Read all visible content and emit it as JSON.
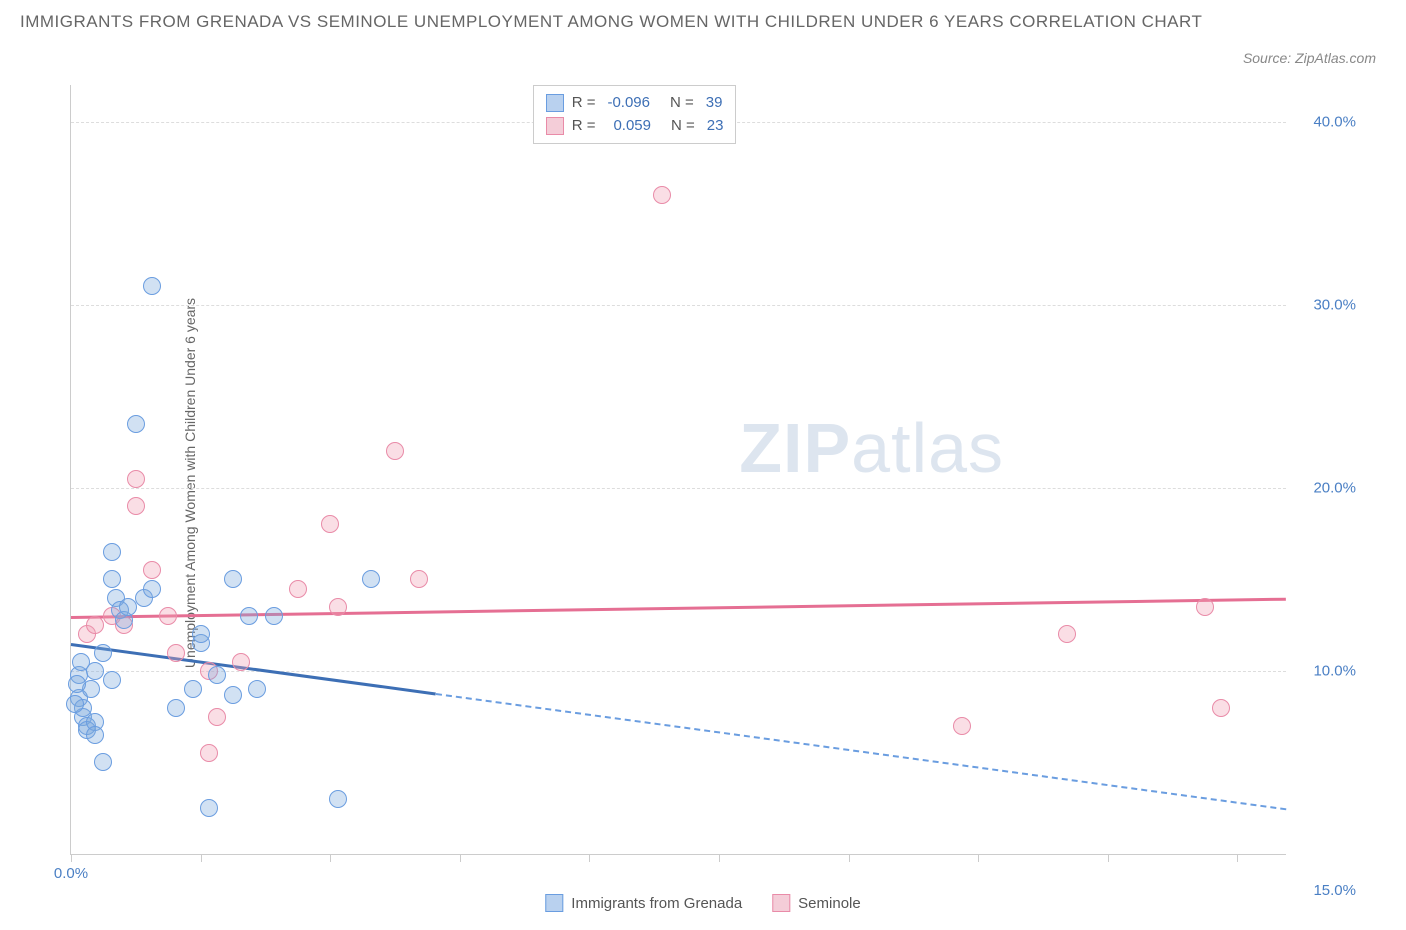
{
  "title": "IMMIGRANTS FROM GRENADA VS SEMINOLE UNEMPLOYMENT AMONG WOMEN WITH CHILDREN UNDER 6 YEARS CORRELATION CHART",
  "source_label": "Source: ZipAtlas.com",
  "y_axis_label": "Unemployment Among Women with Children Under 6 years",
  "watermark": {
    "part1": "ZIP",
    "part2": "atlas"
  },
  "chart": {
    "type": "scatter",
    "xlim": [
      0,
      15
    ],
    "ylim": [
      0,
      42
    ],
    "background_color": "#ffffff",
    "grid_color": "#dddddd",
    "axis_color": "#cccccc",
    "y_ticks": [
      10,
      20,
      30,
      40
    ],
    "y_tick_labels": [
      "10.0%",
      "20.0%",
      "30.0%",
      "40.0%"
    ],
    "y_tick_color": "#4a7fc4",
    "x_tick_positions": [
      0,
      1.6,
      3.2,
      4.8,
      6.4,
      8.0,
      9.6,
      11.2,
      12.8,
      14.4
    ],
    "x_tick_label_left": "0.0%",
    "x_tick_label_right": "15.0%",
    "label_fontsize": 14,
    "tick_fontsize": 15
  },
  "stats_legend": {
    "rows": [
      {
        "swatch_fill": "#b9d1ef",
        "swatch_stroke": "#6a9de0",
        "r_label": "R =",
        "r_value": "-0.096",
        "n_label": "N =",
        "n_value": "39"
      },
      {
        "swatch_fill": "#f4cdd8",
        "swatch_stroke": "#e98ba8",
        "r_label": "R =",
        "r_value": "0.059",
        "n_label": "N =",
        "n_value": "23"
      }
    ]
  },
  "bottom_legend": {
    "items": [
      {
        "swatch_fill": "#b9d1ef",
        "swatch_stroke": "#6a9de0",
        "label": "Immigrants from Grenada"
      },
      {
        "swatch_fill": "#f4cdd8",
        "swatch_stroke": "#e98ba8",
        "label": "Seminole"
      }
    ]
  },
  "series_blue": {
    "color_fill": "rgba(122,169,222,0.35)",
    "color_stroke": "#6a9de0",
    "marker_size": 18,
    "points": [
      [
        0.1,
        8.5
      ],
      [
        0.15,
        7.5
      ],
      [
        0.2,
        7.0
      ],
      [
        0.25,
        9.0
      ],
      [
        0.3,
        10.0
      ],
      [
        0.1,
        9.8
      ],
      [
        0.15,
        8.0
      ],
      [
        0.2,
        6.8
      ],
      [
        0.3,
        7.2
      ],
      [
        0.05,
        8.2
      ],
      [
        0.08,
        9.3
      ],
      [
        0.12,
        10.5
      ],
      [
        0.4,
        11.0
      ],
      [
        0.5,
        16.5
      ],
      [
        0.5,
        15.0
      ],
      [
        0.55,
        14.0
      ],
      [
        0.6,
        13.3
      ],
      [
        0.65,
        12.8
      ],
      [
        0.7,
        13.5
      ],
      [
        0.8,
        23.5
      ],
      [
        1.0,
        31.0
      ],
      [
        0.4,
        5.0
      ],
      [
        0.5,
        9.5
      ],
      [
        0.9,
        14.0
      ],
      [
        1.0,
        14.5
      ],
      [
        1.3,
        8.0
      ],
      [
        1.5,
        9.0
      ],
      [
        1.6,
        11.5
      ],
      [
        1.6,
        12.0
      ],
      [
        1.8,
        9.8
      ],
      [
        2.0,
        8.7
      ],
      [
        2.0,
        15.0
      ],
      [
        2.2,
        13.0
      ],
      [
        2.3,
        9.0
      ],
      [
        2.5,
        13.0
      ],
      [
        1.7,
        2.5
      ],
      [
        3.3,
        3.0
      ],
      [
        3.7,
        15.0
      ],
      [
        0.3,
        6.5
      ]
    ],
    "trend": {
      "y_at_x0": 11.5,
      "y_at_xmax": 2.5,
      "solid_until_x": 4.5
    }
  },
  "series_pink": {
    "color_fill": "rgba(240,160,180,0.35)",
    "color_stroke": "#e98ba8",
    "marker_size": 18,
    "points": [
      [
        0.2,
        12.0
      ],
      [
        0.3,
        12.5
      ],
      [
        0.5,
        13.0
      ],
      [
        0.65,
        12.5
      ],
      [
        0.8,
        19.0
      ],
      [
        0.8,
        20.5
      ],
      [
        1.0,
        15.5
      ],
      [
        1.2,
        13.0
      ],
      [
        1.3,
        11.0
      ],
      [
        1.7,
        10.0
      ],
      [
        1.8,
        7.5
      ],
      [
        1.7,
        5.5
      ],
      [
        2.1,
        10.5
      ],
      [
        2.8,
        14.5
      ],
      [
        3.2,
        18.0
      ],
      [
        3.3,
        13.5
      ],
      [
        4.0,
        22.0
      ],
      [
        4.3,
        15.0
      ],
      [
        7.3,
        36.0
      ],
      [
        11.0,
        7.0
      ],
      [
        12.3,
        12.0
      ],
      [
        14.0,
        13.5
      ],
      [
        14.2,
        8.0
      ]
    ],
    "trend": {
      "y_at_x0": 13.0,
      "y_at_xmax": 14.0
    }
  }
}
